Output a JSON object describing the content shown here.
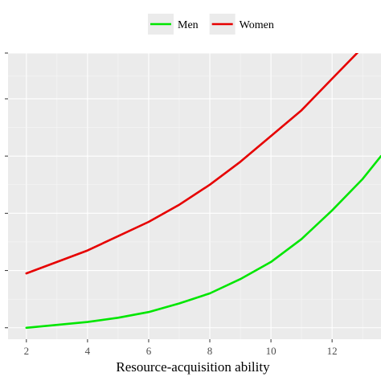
{
  "chart_data": {
    "type": "line",
    "title": "",
    "xlabel": "Resource-acquisition ability",
    "ylabel": "",
    "xlim": [
      1.4,
      13.6
    ],
    "ylim": [
      0,
      1
    ],
    "x_ticks": [
      2,
      4,
      6,
      8,
      10,
      12
    ],
    "x_tick_labels": [
      "2",
      "4",
      "6",
      "8",
      "10",
      "12"
    ],
    "y_ticks": [
      0.04,
      0.24,
      0.44,
      0.64,
      0.84,
      1.0
    ],
    "grid": true,
    "background": "#ebebeb",
    "legend": {
      "position": "top"
    },
    "x": [
      2,
      3,
      4,
      5,
      6,
      7,
      8,
      9,
      10,
      11,
      12,
      13,
      13.6
    ],
    "series": [
      {
        "name": "Men",
        "color": "#00e600",
        "values": [
          0.04,
          0.05,
          0.06,
          0.075,
          0.095,
          0.125,
          0.16,
          0.21,
          0.27,
          0.35,
          0.45,
          0.56,
          0.64
        ]
      },
      {
        "name": "Women",
        "color": "#e60000",
        "values": [
          0.23,
          0.27,
          0.31,
          0.36,
          0.41,
          0.47,
          0.54,
          0.62,
          0.71,
          0.8,
          0.91,
          1.02,
          1.09
        ]
      }
    ]
  }
}
